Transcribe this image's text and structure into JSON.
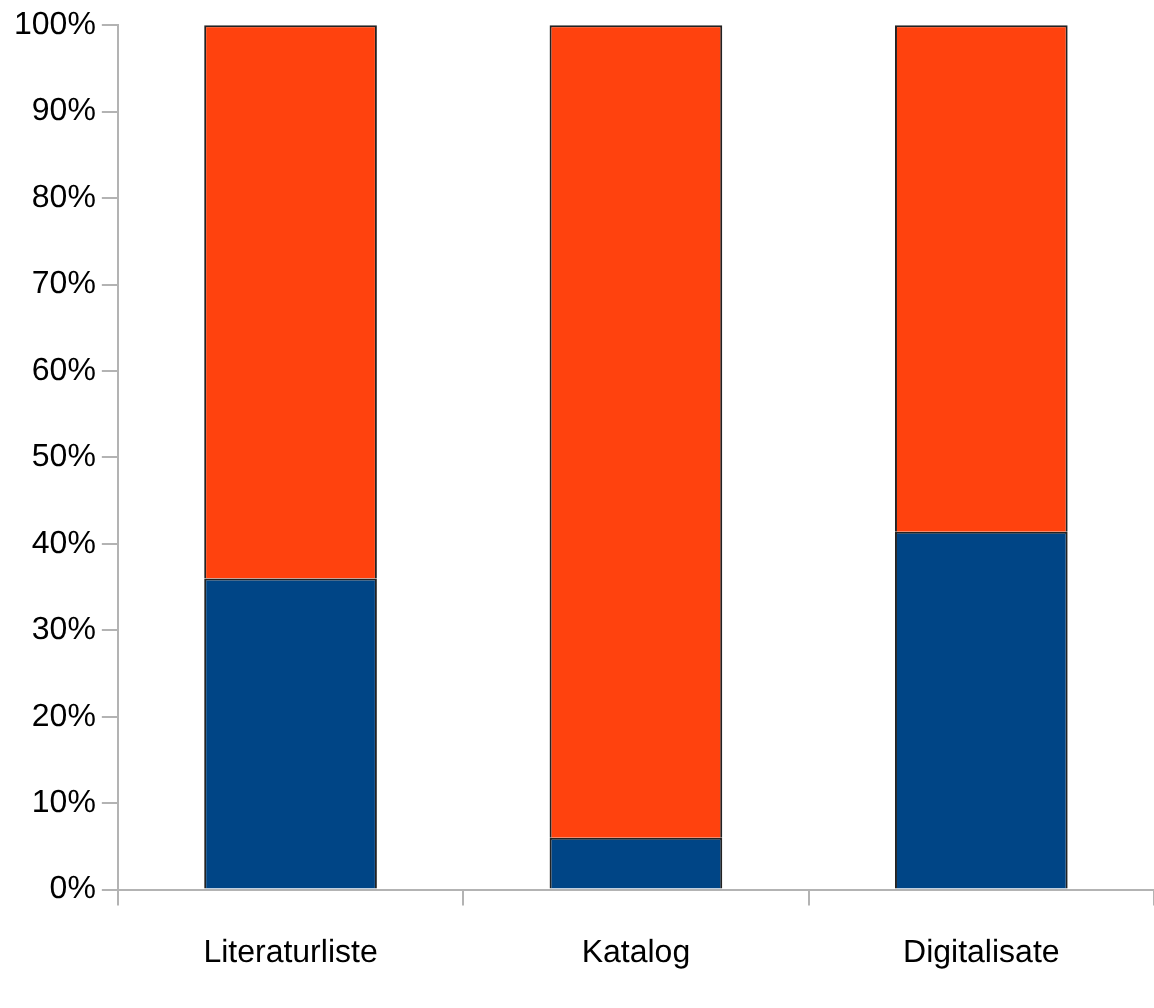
{
  "chart_data": {
    "type": "bar",
    "stacked": true,
    "categories": [
      "Literaturliste",
      "Katalog",
      "Digitalisate"
    ],
    "series": [
      {
        "color": "#004586",
        "values": [
          36,
          6,
          41.4
        ]
      },
      {
        "color": "#ff420e",
        "values": [
          64,
          94,
          58.6
        ]
      }
    ],
    "ylim": [
      0,
      100
    ],
    "yticks": [
      {
        "value": 0,
        "label": "0%"
      },
      {
        "value": 10,
        "label": "10%"
      },
      {
        "value": 20,
        "label": "20%"
      },
      {
        "value": 30,
        "label": "30%"
      },
      {
        "value": 40,
        "label": "40%"
      },
      {
        "value": 50,
        "label": "50%"
      },
      {
        "value": 60,
        "label": "60%"
      },
      {
        "value": 70,
        "label": "70%"
      },
      {
        "value": 80,
        "label": "80%"
      },
      {
        "value": 90,
        "label": "90%"
      },
      {
        "value": 100,
        "label": "100%"
      }
    ],
    "grid": false,
    "legend": false
  }
}
